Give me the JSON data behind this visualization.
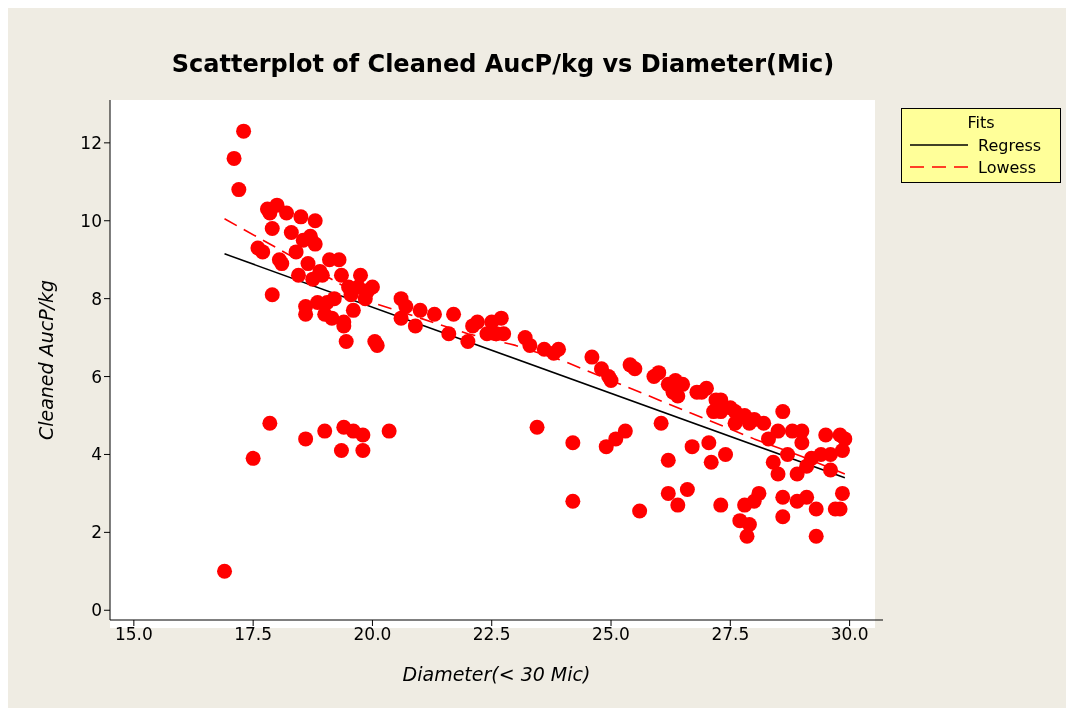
{
  "chart_data": {
    "type": "scatter",
    "title": "Scatterplot of Cleaned AucP/kg vs Diameter(Mic)",
    "xlabel": "Diameter(< 30 Mic)",
    "ylabel": "Cleaned AucP/kg",
    "legend_title": "Fits",
    "legend": "right",
    "grid": false,
    "xlim": [
      14.5,
      30.7
    ],
    "ylim": [
      -0.25,
      13.1
    ],
    "xticks": [
      {
        "value": 15,
        "label": "15.0"
      },
      {
        "value": 17.5,
        "label": "17.5"
      },
      {
        "value": 20,
        "label": "20.0"
      },
      {
        "value": 22.5,
        "label": "22.5"
      },
      {
        "value": 25,
        "label": "25.0"
      },
      {
        "value": 27.5,
        "label": "27.5"
      },
      {
        "value": 30,
        "label": "30.0"
      }
    ],
    "yticks": [
      0,
      2,
      4,
      6,
      8,
      10,
      12
    ],
    "series": [
      {
        "color": "#ff0000",
        "marker": "circle",
        "x": [
          16.9,
          17.1,
          17.3,
          17.2,
          17.5,
          17.85,
          17.9,
          17.6,
          17.7,
          17.8,
          17.85,
          17.9,
          18.0,
          18.05,
          18.1,
          18.2,
          18.3,
          18.4,
          18.45,
          18.5,
          18.55,
          18.6,
          18.6,
          18.65,
          18.7,
          18.75,
          18.8,
          18.8,
          18.85,
          18.9,
          18.95,
          19.0,
          19.05,
          19.1,
          19.15,
          19.2,
          19.3,
          19.35,
          19.4,
          19.4,
          19.45,
          19.5,
          19.55,
          19.6,
          19.7,
          19.75,
          19.85,
          19.9,
          20.0,
          20.05,
          20.1,
          20.6,
          20.6,
          20.7,
          20.9,
          21.0,
          21.3,
          21.6,
          21.7,
          22.0,
          22.1,
          22.2,
          22.4,
          22.5,
          22.6,
          22.7,
          22.75,
          23.2,
          23.3,
          23.6,
          23.8,
          23.9,
          18.6,
          19.0,
          19.35,
          19.4,
          19.6,
          19.8,
          19.8,
          20.35,
          23.45,
          24.2,
          24.2,
          24.6,
          24.8,
          24.9,
          24.95,
          25.0,
          25.1,
          25.3,
          25.4,
          25.5,
          25.6,
          25.9,
          26.0,
          26.05,
          26.2,
          26.3,
          26.35,
          26.4,
          26.2,
          26.2,
          26.4,
          26.5,
          26.6,
          26.7,
          26.8,
          26.9,
          27.0,
          27.05,
          27.1,
          27.15,
          27.2,
          27.3,
          27.3,
          27.4,
          27.5,
          27.6,
          27.7,
          27.8,
          27.85,
          27.9,
          28.0,
          28.1,
          27.8,
          27.9,
          28.0,
          28.2,
          28.3,
          28.4,
          28.5,
          28.6,
          28.6,
          28.6,
          28.7,
          28.8,
          28.9,
          28.9,
          29.0,
          29.1,
          29.1,
          29.2,
          29.3,
          29.3,
          29.5,
          29.6,
          29.6,
          29.7,
          29.8,
          29.8,
          29.85,
          29.9,
          29.85,
          29.4,
          29.0,
          28.5,
          27.6,
          27.3
        ],
        "values": [
          1.0,
          11.6,
          12.3,
          10.8,
          3.9,
          4.8,
          8.1,
          9.3,
          9.2,
          10.3,
          10.2,
          9.8,
          10.4,
          9.0,
          8.9,
          10.2,
          9.7,
          9.2,
          8.6,
          10.1,
          9.5,
          7.8,
          7.6,
          8.9,
          9.6,
          8.5,
          10.0,
          9.4,
          7.9,
          8.7,
          8.6,
          7.6,
          7.9,
          9.0,
          7.5,
          8.0,
          9.0,
          8.6,
          7.4,
          7.3,
          6.9,
          8.3,
          8.1,
          7.7,
          8.3,
          8.6,
          8.0,
          8.2,
          8.3,
          6.9,
          6.8,
          8.0,
          7.5,
          7.8,
          7.3,
          7.7,
          7.6,
          7.1,
          7.6,
          6.9,
          7.3,
          7.4,
          7.1,
          7.4,
          7.1,
          7.5,
          7.1,
          7.0,
          6.8,
          6.7,
          6.6,
          6.7,
          4.4,
          4.6,
          4.1,
          4.7,
          4.6,
          4.5,
          4.1,
          4.6,
          4.7,
          4.3,
          2.8,
          6.5,
          6.2,
          4.2,
          6.0,
          5.9,
          4.4,
          4.6,
          6.3,
          6.2,
          2.55,
          6.0,
          6.1,
          4.8,
          5.8,
          5.6,
          5.9,
          5.5,
          3.85,
          3.0,
          2.7,
          5.8,
          3.1,
          4.2,
          5.6,
          5.6,
          5.7,
          4.3,
          3.8,
          5.1,
          5.4,
          5.4,
          2.7,
          4.0,
          5.2,
          5.1,
          2.3,
          2.7,
          1.9,
          2.2,
          2.8,
          3.0,
          5.0,
          4.8,
          4.9,
          4.8,
          4.4,
          3.8,
          4.6,
          5.1,
          2.9,
          2.4,
          4.0,
          4.6,
          3.5,
          2.8,
          4.6,
          2.9,
          3.7,
          3.9,
          2.6,
          1.9,
          4.5,
          4.0,
          3.6,
          2.6,
          4.5,
          2.6,
          3.0,
          4.4,
          4.1,
          4.0,
          4.3,
          3.5,
          4.8,
          5.1
        ]
      },
      {
        "type": "line",
        "name": "Regress",
        "color": "#000000",
        "line_style": "solid",
        "x": [
          16.9,
          29.9
        ],
        "values": [
          9.15,
          3.4
        ]
      },
      {
        "type": "line",
        "name": "Lowess",
        "color": "#ff0000",
        "line_style": "dashed",
        "x": [
          16.9,
          18,
          19,
          20,
          21,
          22,
          23,
          24,
          25,
          26,
          27,
          28,
          29,
          29.9
        ],
        "values": [
          10.05,
          9.3,
          8.6,
          7.9,
          7.5,
          7.1,
          6.8,
          6.4,
          5.9,
          5.4,
          4.9,
          4.4,
          3.95,
          3.5
        ]
      }
    ]
  }
}
